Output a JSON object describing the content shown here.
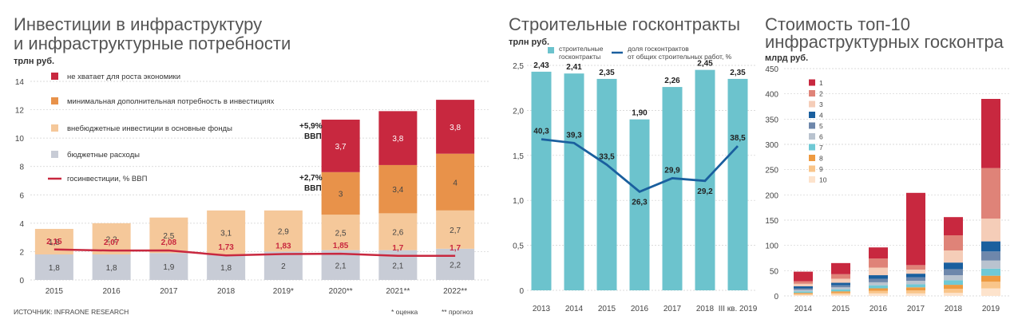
{
  "panel1": {
    "title_line1": "Инвестиции в инфраструктуру",
    "title_line2": "и инфраструктурные потребности",
    "unit": "трлн руб.",
    "source": "ИСТОЧНИК: INFRAONE RESEARCH",
    "footnote_estimate": "* оценка",
    "footnote_forecast": "** прогноз",
    "annotation_59": "+5,9%",
    "annotation_59_sub": "ВВП",
    "annotation_27": "+2,7%",
    "annotation_27_sub": "ВВП"
  },
  "panel2": {
    "title": "Строительные госконтракты",
    "unit": "трлн руб."
  },
  "panel3": {
    "title_line1": "Стоимость топ-10",
    "title_line2": "инфраструктурных госконтрактов",
    "unit": "млрд руб."
  },
  "chart_data": [
    {
      "type": "bar",
      "stacked": true,
      "categories": [
        "2015",
        "2016",
        "2017",
        "2018",
        "2019*",
        "2020**",
        "2021**",
        "2022**"
      ],
      "ylim": [
        0,
        14
      ],
      "yticks": [
        0,
        2,
        4,
        6,
        8,
        10,
        12,
        14
      ],
      "series": [
        {
          "name": "бюджетные расходы",
          "color": "#c8ccd6",
          "values": [
            1.8,
            1.8,
            1.9,
            1.8,
            2,
            2.1,
            2.1,
            2.2
          ]
        },
        {
          "name": "внебюджетные инвестиции в основные фонды",
          "color": "#f5c89a",
          "values": [
            1.8,
            2.2,
            2.5,
            3.1,
            2.9,
            2.5,
            2.6,
            2.7
          ]
        },
        {
          "name": "минимальная дополнительная потребность в инвестициях",
          "color": "#e8924a",
          "values": [
            0,
            0,
            0,
            0,
            0,
            3,
            3.4,
            4
          ]
        },
        {
          "name": "не хватает для роста экономики",
          "color": "#c8283f",
          "values": [
            0,
            0,
            0,
            0,
            0,
            3.7,
            3.8,
            3.8
          ]
        }
      ],
      "bar_labels": [
        [
          "1,8",
          "1,8",
          "1,9",
          "1,8",
          "2",
          "2,1",
          "2,1",
          "2,2"
        ],
        [
          "1,8",
          "2,2",
          "2,5",
          "3,1",
          "2,9",
          "2,5",
          "2,6",
          "2,7"
        ],
        [
          "",
          "",
          "",
          "",
          "",
          "3",
          "3,4",
          "4"
        ],
        [
          "",
          "",
          "",
          "",
          "",
          "3,7",
          "3,8",
          "3,8"
        ]
      ],
      "line": {
        "name": "госинвестиции, % ВВП",
        "color": "#c8283f",
        "values": [
          2.15,
          2.07,
          2.08,
          1.73,
          1.83,
          1.85,
          1.7,
          1.7
        ],
        "labels": [
          "2,15",
          "2,07",
          "2,08",
          "1,73",
          "1,83",
          "1,85",
          "1,7",
          "1,7"
        ]
      },
      "legend_order": [
        "не хватает для роста экономики",
        "минимальная дополнительная потребность в инвестициях",
        "внебюджетные инвестиции в основные фонды",
        "бюджетные расходы",
        "госинвестиции, % ВВП"
      ]
    },
    {
      "type": "bar",
      "categories": [
        "2013",
        "2014",
        "2015",
        "2016",
        "2017",
        "2018",
        "III кв. 2019"
      ],
      "ylim": [
        0,
        2.5
      ],
      "yticks": [
        "0",
        "0,5",
        "1,0",
        "1,5",
        "2,0",
        "2,5"
      ],
      "series": [
        {
          "name": "строительные госконтракты",
          "color": "#6cc3cd",
          "values": [
            2.43,
            2.41,
            2.35,
            1.9,
            2.26,
            2.45,
            2.35
          ],
          "labels": [
            "2,43",
            "2,41",
            "2,35",
            "1,90",
            "2,26",
            "2,45",
            "2,35"
          ]
        }
      ],
      "line": {
        "name": "доля госконтрактов от общих строительных работ, %",
        "color": "#1a5f9e",
        "values": [
          40.3,
          39.3,
          33.5,
          26.3,
          29.9,
          29.2,
          38.5
        ],
        "labels": [
          "40,3",
          "39,3",
          "33,5",
          "26,3",
          "29,9",
          "29,2",
          "38,5"
        ]
      },
      "legend": [
        "строительные госконтракты",
        "доля госконтрактов от общих строительных работ, %"
      ]
    },
    {
      "type": "bar",
      "stacked": true,
      "categories": [
        "2014",
        "2015",
        "2016",
        "2017",
        "2018",
        "2019"
      ],
      "ylim": [
        0,
        450
      ],
      "yticks": [
        0,
        50,
        100,
        150,
        200,
        250,
        300,
        350,
        400,
        450
      ],
      "series": [
        {
          "name": "10",
          "color": "#fde3cc",
          "values": [
            2,
            3,
            5,
            5,
            6,
            15
          ]
        },
        {
          "name": "9",
          "color": "#f9c58a",
          "values": [
            2,
            3,
            5,
            6,
            8,
            13
          ]
        },
        {
          "name": "8",
          "color": "#ee9a40",
          "values": [
            2,
            3,
            5,
            6,
            8,
            12
          ]
        },
        {
          "name": "7",
          "color": "#6fc9d5",
          "values": [
            3,
            4,
            6,
            6,
            9,
            14
          ]
        },
        {
          "name": "6",
          "color": "#b9c3cf",
          "values": [
            3,
            4,
            6,
            7,
            10,
            16
          ]
        },
        {
          "name": "5",
          "color": "#6e87ab",
          "values": [
            3,
            4,
            7,
            7,
            12,
            18
          ]
        },
        {
          "name": "4",
          "color": "#1a5f9e",
          "values": [
            4,
            5,
            7,
            7,
            13,
            20
          ]
        },
        {
          "name": "3",
          "color": "#f5cdb8",
          "values": [
            5,
            8,
            15,
            8,
            24,
            45
          ]
        },
        {
          "name": "2",
          "color": "#df8378",
          "values": [
            5,
            9,
            18,
            9,
            30,
            100
          ]
        },
        {
          "name": "1",
          "color": "#c8283f",
          "values": [
            19,
            22,
            22,
            143,
            36,
            137
          ]
        }
      ],
      "legend": [
        "1",
        "2",
        "3",
        "4",
        "5",
        "6",
        "7",
        "8",
        "9",
        "10"
      ]
    }
  ]
}
